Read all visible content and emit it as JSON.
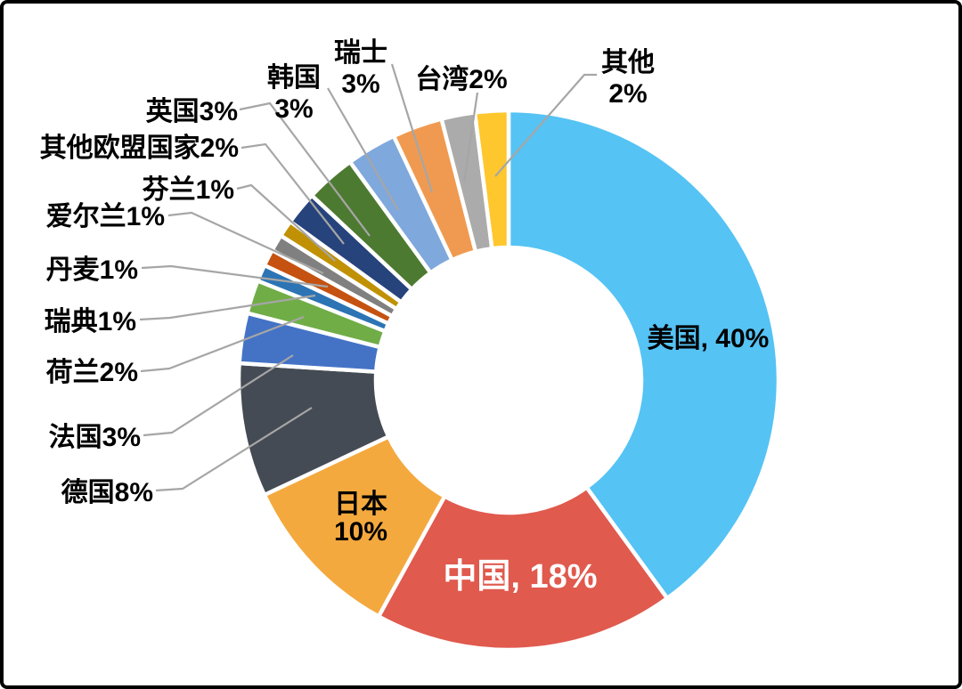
{
  "chart_data": {
    "type": "pie",
    "subtype": "donut",
    "title": "",
    "unit": "%",
    "start_angle_deg": 0,
    "direction": "clockwise",
    "donut_hole_ratio": 0.5,
    "background_color": "#FFFFFF",
    "slice_border_color": "#FFFFFF",
    "leader_line_color": "#A6A6A6",
    "frame_color": "#000000",
    "slices": [
      {
        "label": "美国",
        "value": 40,
        "color": "#55C3F4",
        "display": "美国, 40%",
        "label_position": "inside",
        "label_color": "#000000"
      },
      {
        "label": "中国",
        "value": 18,
        "color": "#E05A4E",
        "display": "中国, 18%",
        "label_position": "inside",
        "label_color": "#FFFFFF"
      },
      {
        "label": "日本",
        "value": 10,
        "color": "#F4A93E",
        "display": "日本\n10%",
        "label_position": "inside",
        "label_color": "#000000"
      },
      {
        "label": "德国",
        "value": 8,
        "color": "#454B54",
        "display": "德国8%",
        "label_position": "outside",
        "label_color": "#000000"
      },
      {
        "label": "法国",
        "value": 3,
        "color": "#4473C6",
        "display": "法国3%",
        "label_position": "outside",
        "label_color": "#000000"
      },
      {
        "label": "荷兰",
        "value": 2,
        "color": "#70AD47",
        "display": "荷兰2%",
        "label_position": "outside",
        "label_color": "#000000"
      },
      {
        "label": "瑞典",
        "value": 1,
        "color": "#2C74B4",
        "display": "瑞典1%",
        "label_position": "outside",
        "label_color": "#000000"
      },
      {
        "label": "丹麦",
        "value": 1,
        "color": "#C55211",
        "display": "丹麦1%",
        "label_position": "outside",
        "label_color": "#000000"
      },
      {
        "label": "爱尔兰",
        "value": 1,
        "color": "#808080",
        "display": "爱尔兰1%",
        "label_position": "outside",
        "label_color": "#000000"
      },
      {
        "label": "芬兰",
        "value": 1,
        "color": "#C09104",
        "display": "芬兰1%",
        "label_position": "outside",
        "label_color": "#000000"
      },
      {
        "label": "其他欧盟国家",
        "value": 2,
        "color": "#26437C",
        "display": "其他欧盟国家2%",
        "label_position": "outside",
        "label_color": "#000000"
      },
      {
        "label": "英国",
        "value": 3,
        "color": "#4D7A31",
        "display": "英国3%",
        "label_position": "outside",
        "label_color": "#000000"
      },
      {
        "label": "韩国",
        "value": 3,
        "color": "#7FA8DC",
        "display": "韩国\n3%",
        "label_position": "outside",
        "label_color": "#000000"
      },
      {
        "label": "瑞士",
        "value": 3,
        "color": "#F09A51",
        "display": "瑞士\n3%",
        "label_position": "outside",
        "label_color": "#000000"
      },
      {
        "label": "台湾",
        "value": 2,
        "color": "#ABABAB",
        "display": "台湾2%",
        "label_position": "outside",
        "label_color": "#000000"
      },
      {
        "label": "其他",
        "value": 2,
        "color": "#FFC72E",
        "display": "其他\n2%",
        "label_position": "outside",
        "label_color": "#000000"
      }
    ]
  }
}
